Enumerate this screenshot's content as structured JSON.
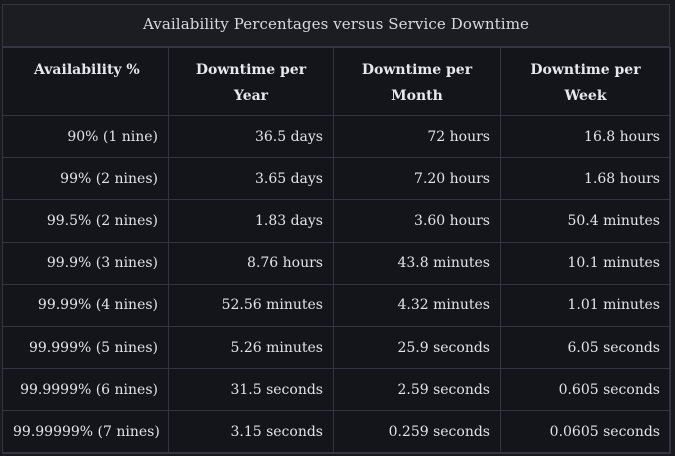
{
  "title": "Availability Percentages versus Service Downtime",
  "headers": [
    "Availability %",
    "Downtime per Year",
    "Downtime per Month",
    "Downtime per Week"
  ],
  "rows": [
    [
      "90% (1 nine)",
      "36.5 days",
      "72 hours",
      "16.8 hours"
    ],
    [
      "99% (2 nines)",
      "3.65 days",
      "7.20 hours",
      "1.68 hours"
    ],
    [
      "99.5% (2 nines)",
      "1.83 days",
      "3.60 hours",
      "50.4 minutes"
    ],
    [
      "99.9% (3 nines)",
      "8.76 hours",
      "43.8 minutes",
      "10.1 minutes"
    ],
    [
      "99.99% (4 nines)",
      "52.56 minutes",
      "4.32 minutes",
      "1.01 minutes"
    ],
    [
      "99.999% (5 nines)",
      "5.26 minutes",
      "25.9 seconds",
      "6.05 seconds"
    ],
    [
      "99.9999% (6 nines)",
      "31.5 seconds",
      "2.59 seconds",
      "0.605 seconds"
    ],
    [
      "99.99999% (7 nines)",
      "3.15 seconds",
      "0.259 seconds",
      "0.0605 seconds"
    ]
  ]
}
